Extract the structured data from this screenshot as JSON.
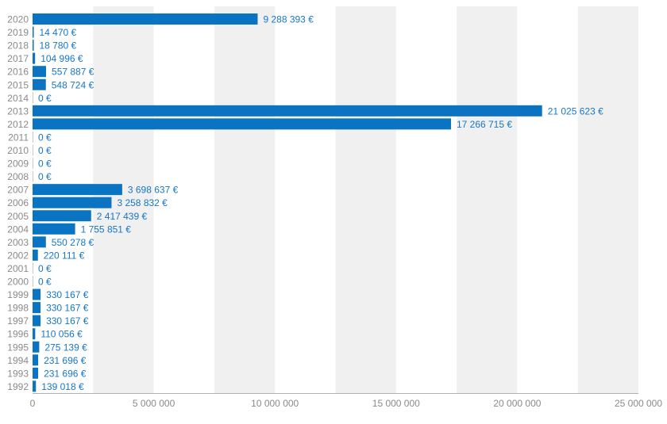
{
  "colors": {
    "bar": "#0a74c2",
    "label": "#1677c8",
    "band": "#f0f0f0",
    "axis_text": "#8a8a8a",
    "axis_line": "#b0b0b0"
  },
  "chart_data": {
    "type": "bar",
    "orientation": "horizontal",
    "categories": [
      "2020",
      "2019",
      "2018",
      "2017",
      "2016",
      "2015",
      "2014",
      "2013",
      "2012",
      "2011",
      "2010",
      "2009",
      "2008",
      "2007",
      "2006",
      "2005",
      "2004",
      "2003",
      "2002",
      "2001",
      "2000",
      "1999",
      "1998",
      "1997",
      "1996",
      "1995",
      "1994",
      "1993",
      "1992"
    ],
    "values": [
      9288393,
      14470,
      18780,
      104996,
      557887,
      548724,
      0,
      21025623,
      17266715,
      0,
      0,
      0,
      0,
      3698637,
      3258832,
      2417439,
      1755851,
      550278,
      220111,
      0,
      0,
      330167,
      330167,
      330167,
      110056,
      275139,
      231696,
      231696,
      139018
    ],
    "value_labels": [
      "9 288 393 €",
      "14 470 €",
      "18 780 €",
      "104 996 €",
      "557 887 €",
      "548 724 €",
      "0 €",
      "21 025 623 €",
      "17 266 715 €",
      "0 €",
      "0 €",
      "0 €",
      "0 €",
      "3 698 637 €",
      "3 258 832 €",
      "2 417 439 €",
      "1 755 851 €",
      "550 278 €",
      "220 111 €",
      "0 €",
      "0 €",
      "330 167 €",
      "330 167 €",
      "330 167 €",
      "110 056 €",
      "275 139 €",
      "231 696 €",
      "231 696 €",
      "139 018 €"
    ],
    "xlim": [
      0,
      25000000
    ],
    "x_ticks": [
      0,
      5000000,
      10000000,
      15000000,
      20000000,
      25000000
    ],
    "x_tick_labels": [
      "0",
      "5 000 000",
      "10 000 000",
      "15 000 000",
      "20 000 000",
      "25 000 000"
    ],
    "grid": "alternating vertical bands",
    "legend": "none",
    "title": "",
    "xlabel": "",
    "ylabel": ""
  }
}
